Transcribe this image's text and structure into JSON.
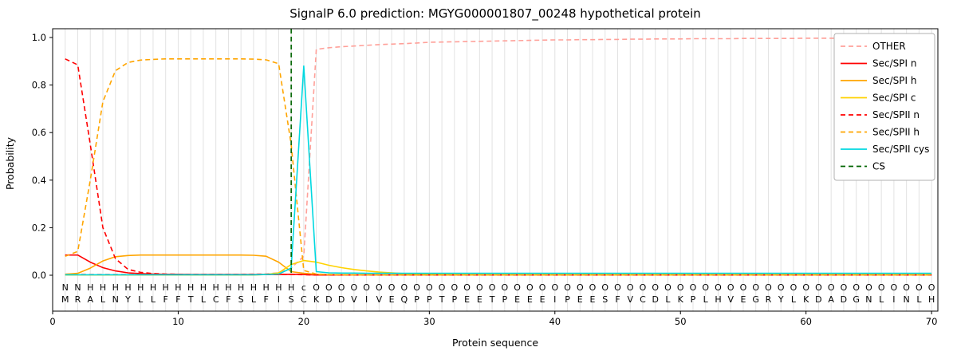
{
  "chart_data": {
    "type": "line",
    "title": "SignalP 6.0 prediction: MGYG000001807_00248 hypothetical protein",
    "xlabel": "Protein sequence",
    "ylabel": "Probability",
    "xticks": [
      0,
      10,
      20,
      30,
      40,
      50,
      60,
      70
    ],
    "yticks": [
      0.0,
      0.2,
      0.4,
      0.6,
      0.8,
      1.0
    ],
    "xlim": [
      0,
      70.5
    ],
    "ylim": [
      -0.15,
      1.04
    ],
    "grid": "vertical gridline at every residue position",
    "legend_position": "upper right",
    "colors": {
      "other": "#ffa099",
      "red": "#ff0000",
      "orange": "#ffa500",
      "gold": "#ffd200",
      "cyan": "#00d8e0",
      "cs_green": "#006400",
      "gridline": "#e2e2e2",
      "other_letter_gray": "#a0a0a0"
    },
    "sequence": "MRALNYLLFFTLCFSLFISCKDDVIVEQPPTPEETPEEEIPEESFVCDLKPLHVEGRYLKDADGNLINLH",
    "annotation": "NNHHHHHHHHHHHHHHHHHcOOOOOOOOOOOOOOOOOOOOOOOOOOOOOOOOOOOOOOOOOOOOOOOOOO",
    "annotation_colors": {
      "N": "#ff0000",
      "H": "#ffa500",
      "c": "#00d8e0",
      "O": "#a0a0a0"
    },
    "cs": {
      "label": "CS",
      "position": 19,
      "color": "#006400"
    },
    "series": [
      {
        "name": "OTHER",
        "color": "#ffa099",
        "dash": true,
        "values": [
          0.005,
          0.005,
          0.004,
          0.004,
          0.004,
          0.004,
          0.004,
          0.004,
          0.004,
          0.004,
          0.004,
          0.004,
          0.004,
          0.004,
          0.004,
          0.005,
          0.006,
          0.01,
          0.03,
          0.08,
          0.95,
          0.957,
          0.961,
          0.964,
          0.967,
          0.97,
          0.972,
          0.974,
          0.977,
          0.98,
          0.981,
          0.982,
          0.983,
          0.984,
          0.985,
          0.986,
          0.987,
          0.988,
          0.989,
          0.99,
          0.99,
          0.991,
          0.991,
          0.992,
          0.992,
          0.993,
          0.993,
          0.994,
          0.994,
          0.994,
          0.995,
          0.995,
          0.995,
          0.995,
          0.996,
          0.996,
          0.996,
          0.996,
          0.996,
          0.997,
          0.997,
          0.997,
          0.997,
          0.997,
          0.997,
          0.997,
          0.997,
          0.997,
          0.997,
          0.997
        ]
      },
      {
        "name": "Sec/SPI n",
        "color": "#ff0000",
        "dash": false,
        "values": [
          0.085,
          0.085,
          0.055,
          0.032,
          0.018,
          0.01,
          0.007,
          0.005,
          0.004,
          0.004,
          0.003,
          0.003,
          0.003,
          0.003,
          0.003,
          0.003,
          0.003,
          0.003,
          0.004,
          0.003,
          0.001,
          0.001,
          0.001,
          0.001,
          0.001,
          0.001,
          0.001,
          0.001,
          0.001,
          0.001,
          0.001,
          0.001,
          0.001,
          0.001,
          0.001,
          0.001,
          0.001,
          0.001,
          0.001,
          0.001,
          0.001,
          0.001,
          0.001,
          0.001,
          0.001,
          0.001,
          0.001,
          0.001,
          0.001,
          0.001,
          0.001,
          0.001,
          0.001,
          0.001,
          0.001,
          0.001,
          0.001,
          0.001,
          0.001,
          0.001,
          0.001,
          0.001,
          0.001,
          0.001,
          0.001,
          0.001,
          0.001,
          0.001,
          0.001,
          0.001
        ]
      },
      {
        "name": "Sec/SPI h",
        "color": "#ffa500",
        "dash": false,
        "values": [
          0.004,
          0.008,
          0.03,
          0.06,
          0.078,
          0.083,
          0.085,
          0.085,
          0.085,
          0.085,
          0.085,
          0.085,
          0.085,
          0.085,
          0.085,
          0.084,
          0.08,
          0.055,
          0.015,
          0.008,
          0.004,
          0.002,
          0.002,
          0.001,
          0.001,
          0.001,
          0.001,
          0.001,
          0.001,
          0.001,
          0.001,
          0.001,
          0.001,
          0.001,
          0.001,
          0.001,
          0.001,
          0.001,
          0.001,
          0.001,
          0.001,
          0.001,
          0.001,
          0.001,
          0.001,
          0.001,
          0.001,
          0.001,
          0.001,
          0.001,
          0.001,
          0.001,
          0.001,
          0.001,
          0.001,
          0.001,
          0.001,
          0.001,
          0.001,
          0.001,
          0.001,
          0.001,
          0.001,
          0.001,
          0.001,
          0.001,
          0.001,
          0.001,
          0.001,
          0.001
        ]
      },
      {
        "name": "Sec/SPI c",
        "color": "#ffd200",
        "dash": false,
        "values": [
          0.001,
          0.001,
          0.001,
          0.001,
          0.001,
          0.001,
          0.001,
          0.001,
          0.001,
          0.001,
          0.001,
          0.001,
          0.001,
          0.001,
          0.001,
          0.001,
          0.003,
          0.01,
          0.045,
          0.062,
          0.055,
          0.042,
          0.032,
          0.024,
          0.018,
          0.013,
          0.01,
          0.007,
          0.005,
          0.004,
          0.003,
          0.003,
          0.002,
          0.002,
          0.002,
          0.002,
          0.002,
          0.002,
          0.002,
          0.002,
          0.002,
          0.002,
          0.002,
          0.002,
          0.002,
          0.002,
          0.002,
          0.002,
          0.002,
          0.002,
          0.002,
          0.002,
          0.002,
          0.002,
          0.002,
          0.002,
          0.002,
          0.002,
          0.002,
          0.002,
          0.002,
          0.002,
          0.002,
          0.002,
          0.002,
          0.002,
          0.002,
          0.002,
          0.002,
          0.002
        ]
      },
      {
        "name": "Sec/SPII n",
        "color": "#ff0000",
        "dash": true,
        "values": [
          0.91,
          0.885,
          0.55,
          0.2,
          0.07,
          0.025,
          0.012,
          0.007,
          0.005,
          0.004,
          0.003,
          0.003,
          0.003,
          0.003,
          0.003,
          0.003,
          0.003,
          0.003,
          0.003,
          0.002,
          0.001,
          0.001,
          0.001,
          0.001,
          0.001,
          0.001,
          0.001,
          0.001,
          0.001,
          0.001,
          0.001,
          0.001,
          0.001,
          0.001,
          0.001,
          0.001,
          0.001,
          0.001,
          0.001,
          0.001,
          0.001,
          0.001,
          0.001,
          0.001,
          0.001,
          0.001,
          0.001,
          0.001,
          0.001,
          0.001,
          0.001,
          0.001,
          0.001,
          0.001,
          0.001,
          0.001,
          0.001,
          0.001,
          0.001,
          0.001,
          0.001,
          0.001,
          0.001,
          0.001,
          0.001,
          0.001,
          0.001,
          0.001,
          0.001,
          0.001
        ]
      },
      {
        "name": "Sec/SPII h",
        "color": "#ffa500",
        "dash": true,
        "values": [
          0.08,
          0.1,
          0.4,
          0.73,
          0.86,
          0.895,
          0.905,
          0.908,
          0.91,
          0.91,
          0.91,
          0.91,
          0.91,
          0.91,
          0.91,
          0.909,
          0.906,
          0.89,
          0.55,
          0.02,
          0.005,
          0.003,
          0.002,
          0.002,
          0.002,
          0.002,
          0.002,
          0.002,
          0.002,
          0.002,
          0.002,
          0.002,
          0.002,
          0.002,
          0.002,
          0.002,
          0.002,
          0.002,
          0.002,
          0.002,
          0.002,
          0.002,
          0.002,
          0.002,
          0.002,
          0.002,
          0.002,
          0.002,
          0.002,
          0.002,
          0.002,
          0.002,
          0.002,
          0.002,
          0.002,
          0.002,
          0.002,
          0.002,
          0.002,
          0.002,
          0.002,
          0.002,
          0.002,
          0.002,
          0.002,
          0.002,
          0.002,
          0.002,
          0.002,
          0.002
        ]
      },
      {
        "name": "Sec/SPII cys",
        "color": "#00d8e0",
        "dash": false,
        "values": [
          0.002,
          0.002,
          0.002,
          0.002,
          0.002,
          0.002,
          0.002,
          0.002,
          0.002,
          0.002,
          0.002,
          0.002,
          0.002,
          0.002,
          0.002,
          0.002,
          0.003,
          0.005,
          0.03,
          0.88,
          0.015,
          0.01,
          0.009,
          0.009,
          0.008,
          0.008,
          0.008,
          0.008,
          0.008,
          0.008,
          0.008,
          0.008,
          0.008,
          0.008,
          0.008,
          0.008,
          0.008,
          0.008,
          0.008,
          0.008,
          0.008,
          0.008,
          0.008,
          0.008,
          0.008,
          0.008,
          0.008,
          0.008,
          0.008,
          0.008,
          0.008,
          0.008,
          0.008,
          0.008,
          0.008,
          0.008,
          0.008,
          0.008,
          0.008,
          0.008,
          0.008,
          0.008,
          0.008,
          0.008,
          0.008,
          0.008,
          0.008,
          0.008,
          0.008,
          0.008
        ]
      }
    ]
  }
}
